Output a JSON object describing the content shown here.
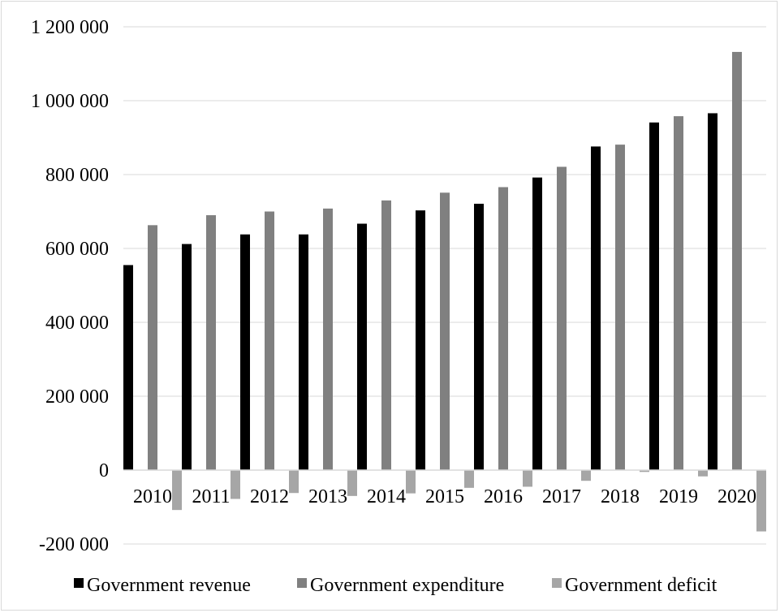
{
  "chart_data": {
    "type": "bar",
    "categories": [
      "2010",
      "2011",
      "2012",
      "2013",
      "2014",
      "2015",
      "2016",
      "2017",
      "2018",
      "2019",
      "2020"
    ],
    "series": [
      {
        "name": "Government revenue",
        "color": "#000000",
        "values": [
          555000,
          612000,
          638000,
          638000,
          667000,
          703000,
          721000,
          792000,
          876000,
          941000,
          966000
        ]
      },
      {
        "name": "Government expenditure",
        "color": "#808080",
        "values": [
          663000,
          690000,
          700000,
          708000,
          730000,
          751000,
          766000,
          821000,
          881000,
          958000,
          1132000
        ]
      },
      {
        "name": "Government deficit",
        "color": "#a6a6a6",
        "values": [
          -108000,
          -78000,
          -62000,
          -70000,
          -63000,
          -48000,
          -45000,
          -29000,
          -5000,
          -17000,
          -166000
        ]
      }
    ],
    "ylim": [
      -200000,
      1200000
    ],
    "yticks": [
      -200000,
      0,
      200000,
      400000,
      600000,
      800000,
      1000000,
      1200000
    ],
    "ytick_labels": [
      "-200 000",
      "0",
      "200 000",
      "400 000",
      "600 000",
      "800 000",
      "1 000 000",
      "1 200 000"
    ],
    "grid": true,
    "legend_position": "bottom",
    "title": "",
    "xlabel": "",
    "ylabel": ""
  }
}
